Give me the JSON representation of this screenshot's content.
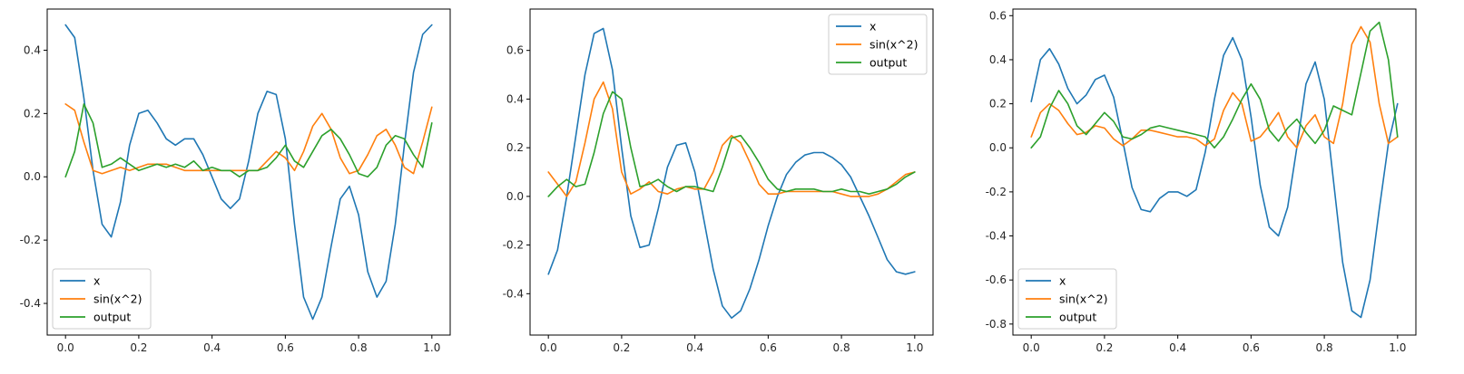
{
  "colors": {
    "x": "#1f77b4",
    "sin": "#ff7f0e",
    "output": "#2ca02c"
  },
  "chart_data": [
    {
      "type": "line",
      "xlim": [
        -0.05,
        1.05
      ],
      "ylim": [
        -0.5,
        0.53
      ],
      "xticks": [
        0.0,
        0.2,
        0.4,
        0.6,
        0.8,
        1.0
      ],
      "yticks": [
        -0.4,
        -0.2,
        0.0,
        0.2,
        0.4
      ],
      "legend": "lower-left",
      "x": [
        0.0,
        0.025,
        0.05,
        0.075,
        0.1,
        0.125,
        0.15,
        0.175,
        0.2,
        0.225,
        0.25,
        0.275,
        0.3,
        0.325,
        0.35,
        0.375,
        0.4,
        0.425,
        0.45,
        0.475,
        0.5,
        0.525,
        0.55,
        0.575,
        0.6,
        0.625,
        0.65,
        0.675,
        0.7,
        0.725,
        0.75,
        0.775,
        0.8,
        0.825,
        0.85,
        0.875,
        0.9,
        0.925,
        0.95,
        0.975,
        1.0
      ],
      "series": [
        {
          "name": "x",
          "values": [
            0.48,
            0.44,
            0.25,
            0.02,
            -0.15,
            -0.19,
            -0.08,
            0.1,
            0.2,
            0.21,
            0.17,
            0.12,
            0.1,
            0.12,
            0.12,
            0.07,
            0.0,
            -0.07,
            -0.1,
            -0.07,
            0.05,
            0.2,
            0.27,
            0.26,
            0.12,
            -0.15,
            -0.38,
            -0.45,
            -0.38,
            -0.22,
            -0.07,
            -0.03,
            -0.12,
            -0.3,
            -0.38,
            -0.33,
            -0.15,
            0.1,
            0.33,
            0.45,
            0.48
          ]
        },
        {
          "name": "sin(x^2)",
          "values": [
            0.23,
            0.21,
            0.11,
            0.02,
            0.01,
            0.02,
            0.03,
            0.02,
            0.03,
            0.04,
            0.04,
            0.04,
            0.03,
            0.02,
            0.02,
            0.02,
            0.02,
            0.02,
            0.02,
            0.02,
            0.02,
            0.02,
            0.05,
            0.08,
            0.06,
            0.02,
            0.08,
            0.16,
            0.2,
            0.15,
            0.06,
            0.01,
            0.02,
            0.07,
            0.13,
            0.15,
            0.1,
            0.03,
            0.01,
            0.11,
            0.22
          ]
        },
        {
          "name": "output",
          "values": [
            0.0,
            0.08,
            0.23,
            0.17,
            0.03,
            0.04,
            0.06,
            0.04,
            0.02,
            0.03,
            0.04,
            0.03,
            0.04,
            0.03,
            0.05,
            0.02,
            0.03,
            0.02,
            0.02,
            0.0,
            0.02,
            0.02,
            0.03,
            0.06,
            0.1,
            0.05,
            0.03,
            0.08,
            0.13,
            0.15,
            0.12,
            0.07,
            0.01,
            0.0,
            0.03,
            0.1,
            0.13,
            0.12,
            0.07,
            0.03,
            0.17
          ]
        }
      ]
    },
    {
      "type": "line",
      "xlim": [
        -0.05,
        1.05
      ],
      "ylim": [
        -0.57,
        0.77
      ],
      "xticks": [
        0.0,
        0.2,
        0.4,
        0.6,
        0.8,
        1.0
      ],
      "yticks": [
        -0.4,
        -0.2,
        0.0,
        0.2,
        0.4,
        0.6
      ],
      "legend": "top-right",
      "x": [
        0.0,
        0.025,
        0.05,
        0.075,
        0.1,
        0.125,
        0.15,
        0.175,
        0.2,
        0.225,
        0.25,
        0.275,
        0.3,
        0.325,
        0.35,
        0.375,
        0.4,
        0.425,
        0.45,
        0.475,
        0.5,
        0.525,
        0.55,
        0.575,
        0.6,
        0.625,
        0.65,
        0.675,
        0.7,
        0.725,
        0.75,
        0.775,
        0.8,
        0.825,
        0.85,
        0.875,
        0.9,
        0.925,
        0.95,
        0.975,
        1.0
      ],
      "series": [
        {
          "name": "x",
          "values": [
            -0.32,
            -0.22,
            0.0,
            0.25,
            0.5,
            0.67,
            0.69,
            0.52,
            0.2,
            -0.08,
            -0.21,
            -0.2,
            -0.05,
            0.12,
            0.21,
            0.22,
            0.1,
            -0.1,
            -0.3,
            -0.45,
            -0.5,
            -0.47,
            -0.38,
            -0.26,
            -0.12,
            0.0,
            0.09,
            0.14,
            0.17,
            0.18,
            0.18,
            0.16,
            0.13,
            0.08,
            0.0,
            -0.08,
            -0.17,
            -0.26,
            -0.31,
            -0.32,
            -0.31
          ]
        },
        {
          "name": "sin(x^2)",
          "values": [
            0.1,
            0.05,
            0.0,
            0.06,
            0.22,
            0.4,
            0.47,
            0.36,
            0.1,
            0.01,
            0.03,
            0.06,
            0.02,
            0.01,
            0.03,
            0.04,
            0.03,
            0.03,
            0.1,
            0.21,
            0.25,
            0.22,
            0.14,
            0.05,
            0.01,
            0.01,
            0.02,
            0.02,
            0.02,
            0.02,
            0.02,
            0.02,
            0.01,
            0.0,
            0.0,
            0.0,
            0.01,
            0.03,
            0.06,
            0.09,
            0.1
          ]
        },
        {
          "name": "output",
          "values": [
            0.0,
            0.04,
            0.07,
            0.04,
            0.05,
            0.18,
            0.34,
            0.43,
            0.4,
            0.2,
            0.04,
            0.05,
            0.07,
            0.04,
            0.02,
            0.04,
            0.04,
            0.03,
            0.02,
            0.12,
            0.24,
            0.25,
            0.2,
            0.14,
            0.07,
            0.03,
            0.02,
            0.03,
            0.03,
            0.03,
            0.02,
            0.02,
            0.03,
            0.02,
            0.02,
            0.01,
            0.02,
            0.03,
            0.05,
            0.08,
            0.1
          ]
        }
      ]
    },
    {
      "type": "line",
      "xlim": [
        -0.05,
        1.05
      ],
      "ylim": [
        -0.85,
        0.63
      ],
      "xticks": [
        0.0,
        0.2,
        0.4,
        0.6,
        0.8,
        1.0
      ],
      "yticks": [
        -0.8,
        -0.6,
        -0.4,
        -0.2,
        0.0,
        0.2,
        0.4,
        0.6
      ],
      "legend": "lower-left",
      "x": [
        0.0,
        0.025,
        0.05,
        0.075,
        0.1,
        0.125,
        0.15,
        0.175,
        0.2,
        0.225,
        0.25,
        0.275,
        0.3,
        0.325,
        0.35,
        0.375,
        0.4,
        0.425,
        0.45,
        0.475,
        0.5,
        0.525,
        0.55,
        0.575,
        0.6,
        0.625,
        0.65,
        0.675,
        0.7,
        0.725,
        0.75,
        0.775,
        0.8,
        0.825,
        0.85,
        0.875,
        0.9,
        0.925,
        0.95,
        0.975,
        1.0
      ],
      "series": [
        {
          "name": "x",
          "values": [
            0.21,
            0.4,
            0.45,
            0.38,
            0.27,
            0.2,
            0.24,
            0.31,
            0.33,
            0.23,
            0.03,
            -0.18,
            -0.28,
            -0.29,
            -0.23,
            -0.2,
            -0.2,
            -0.22,
            -0.19,
            -0.02,
            0.22,
            0.42,
            0.5,
            0.4,
            0.14,
            -0.17,
            -0.36,
            -0.4,
            -0.27,
            0.0,
            0.29,
            0.39,
            0.22,
            -0.15,
            -0.52,
            -0.74,
            -0.77,
            -0.6,
            -0.28,
            0.02,
            0.2
          ]
        },
        {
          "name": "sin(x^2)",
          "values": [
            0.05,
            0.16,
            0.2,
            0.17,
            0.11,
            0.06,
            0.07,
            0.1,
            0.09,
            0.04,
            0.01,
            0.04,
            0.08,
            0.08,
            0.07,
            0.06,
            0.05,
            0.05,
            0.04,
            0.01,
            0.04,
            0.17,
            0.25,
            0.2,
            0.03,
            0.05,
            0.1,
            0.16,
            0.05,
            0.0,
            0.1,
            0.15,
            0.05,
            0.02,
            0.2,
            0.47,
            0.55,
            0.48,
            0.2,
            0.02,
            0.05
          ]
        },
        {
          "name": "output",
          "values": [
            0.0,
            0.05,
            0.18,
            0.26,
            0.2,
            0.1,
            0.06,
            0.11,
            0.16,
            0.12,
            0.05,
            0.04,
            0.06,
            0.09,
            0.1,
            0.09,
            0.08,
            0.07,
            0.06,
            0.05,
            0.0,
            0.05,
            0.13,
            0.22,
            0.29,
            0.22,
            0.08,
            0.03,
            0.09,
            0.13,
            0.07,
            0.02,
            0.08,
            0.19,
            0.17,
            0.15,
            0.34,
            0.53,
            0.57,
            0.4,
            0.05
          ]
        }
      ]
    }
  ]
}
